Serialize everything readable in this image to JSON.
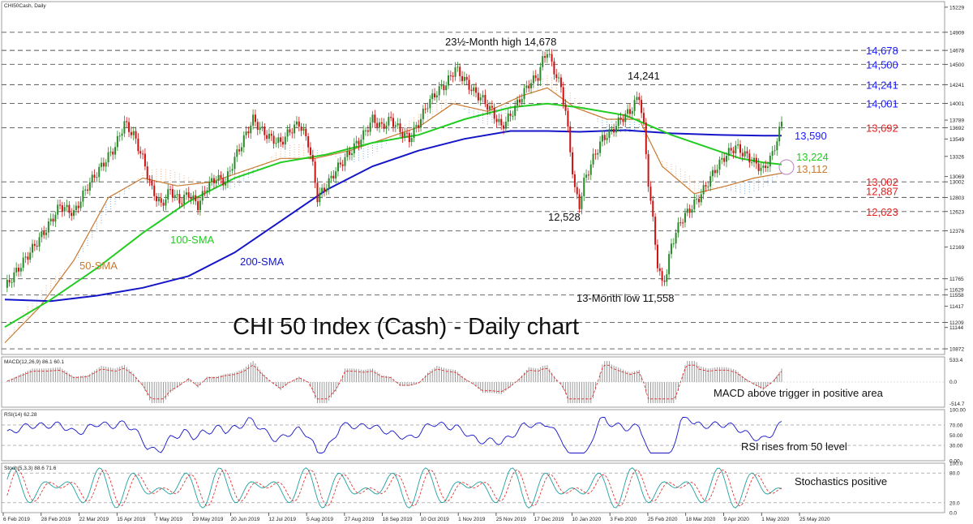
{
  "chart_data": {
    "type": "line",
    "symbol_title": "CHI50Cash, Daily",
    "title": "CHI 50 Index (Cash) - Daily chart",
    "colors": {
      "price": "#000000",
      "sma100": "#22cc22",
      "sma200": "#1515c8",
      "sma50": "#c87a30",
      "blue_labels": "#1a1aff",
      "red_labels": "#e02020",
      "green_labels": "#22cc22",
      "orange_labels": "#c87a30",
      "cloud": "#e8a070",
      "cloud_bear": "#5599dd",
      "macd_hist": "#9a9a9a",
      "macd_signal": "#e02020",
      "rsi": "#1515c8",
      "stoch_k": "#20a0a0",
      "stoch_d": "#e02020"
    },
    "price_axis_ticks": [
      "15229",
      "14909",
      "14678",
      "14500",
      "14241",
      "14001",
      "13789",
      "13692",
      "13549",
      "13326",
      "13069",
      "13002",
      "12803",
      "12623",
      "12376",
      "12169",
      "11765",
      "11629",
      "11558",
      "11417",
      "11209",
      "11144",
      "10872"
    ],
    "x_ticks": [
      "6 Feb 2019",
      "28 Feb 2019",
      "22 Mar 2019",
      "15 Apr 2019",
      "7 May 2019",
      "29 May 2019",
      "20 Jun 2019",
      "12 Jul 2019",
      "5 Aug 2019",
      "27 Aug 2019",
      "18 Sep 2019",
      "10 Oct 2019",
      "1 Nov 2019",
      "25 Nov 2019",
      "17 Dec 2019",
      "10 Jan 2020",
      "3 Feb 2020",
      "25 Feb 2020",
      "18 Mar 2020",
      "9 Apr 2020",
      "1 May 2020",
      "25 May 2020"
    ],
    "ylim": [
      10800,
      15300
    ],
    "levels": [
      {
        "value": "14,678",
        "price": 14678,
        "color": "blue"
      },
      {
        "value": "14,500",
        "price": 14500,
        "color": "blue"
      },
      {
        "value": "14,241",
        "price": 14241,
        "color": "blue"
      },
      {
        "value": "14,001",
        "price": 14001,
        "color": "blue"
      },
      {
        "value": "13,692",
        "price": 13692,
        "color": "red"
      },
      {
        "value": "13,002",
        "price": 13002,
        "color": "red"
      },
      {
        "value": "12,887",
        "price": 12887,
        "color": "red"
      },
      {
        "value": "12,623",
        "price": 12623,
        "color": "red"
      }
    ],
    "dashed_levels": [
      14909,
      14678,
      14500,
      14241,
      14001,
      13692,
      13002,
      12803,
      12623,
      12376,
      11765,
      11558,
      11209,
      10872
    ],
    "annotations": [
      {
        "text": "23½-Month high 14,678"
      },
      {
        "text": "14,241"
      },
      {
        "text": "12,528"
      },
      {
        "text": "13-Month low 11,558"
      },
      {
        "text": "13,590"
      },
      {
        "text": "13,224"
      },
      {
        "text": "13,112"
      },
      {
        "text": "100-SMA"
      },
      {
        "text": "200-SMA"
      },
      {
        "text": "50-SMA"
      }
    ],
    "price_series": [
      [
        0,
        11650
      ],
      [
        6,
        11900
      ],
      [
        12,
        12150
      ],
      [
        18,
        12400
      ],
      [
        24,
        12700
      ],
      [
        30,
        12600
      ],
      [
        36,
        12950
      ],
      [
        42,
        13200
      ],
      [
        48,
        13450
      ],
      [
        52,
        13750
      ],
      [
        56,
        13600
      ],
      [
        60,
        13300
      ],
      [
        64,
        12900
      ],
      [
        68,
        12700
      ],
      [
        72,
        12900
      ],
      [
        76,
        12750
      ],
      [
        80,
        12850
      ],
      [
        84,
        12700
      ],
      [
        88,
        12950
      ],
      [
        92,
        13050
      ],
      [
        96,
        13000
      ],
      [
        100,
        13300
      ],
      [
        104,
        13550
      ],
      [
        108,
        13800
      ],
      [
        112,
        13650
      ],
      [
        116,
        13550
      ],
      [
        120,
        13500
      ],
      [
        124,
        13650
      ],
      [
        128,
        13750
      ],
      [
        132,
        13500
      ],
      [
        134,
        13200
      ],
      [
        136,
        12800
      ],
      [
        140,
        12950
      ],
      [
        144,
        13150
      ],
      [
        148,
        13300
      ],
      [
        152,
        13450
      ],
      [
        156,
        13600
      ],
      [
        160,
        13800
      ],
      [
        164,
        13700
      ],
      [
        168,
        13800
      ],
      [
        172,
        13650
      ],
      [
        176,
        13550
      ],
      [
        180,
        13750
      ],
      [
        184,
        14000
      ],
      [
        188,
        14150
      ],
      [
        192,
        14250
      ],
      [
        196,
        14450
      ],
      [
        200,
        14300
      ],
      [
        204,
        14150
      ],
      [
        208,
        14050
      ],
      [
        212,
        13900
      ],
      [
        216,
        13700
      ],
      [
        220,
        13850
      ],
      [
        224,
        14050
      ],
      [
        228,
        14250
      ],
      [
        232,
        14350
      ],
      [
        234,
        14550
      ],
      [
        236,
        14678
      ],
      [
        238,
        14500
      ],
      [
        240,
        14350
      ],
      [
        242,
        14200
      ],
      [
        244,
        13900
      ],
      [
        246,
        13400
      ],
      [
        248,
        12900
      ],
      [
        250,
        12700
      ],
      [
        252,
        13000
      ],
      [
        256,
        13300
      ],
      [
        260,
        13550
      ],
      [
        264,
        13650
      ],
      [
        268,
        13800
      ],
      [
        272,
        13900
      ],
      [
        276,
        14100
      ],
      [
        278,
        13700
      ],
      [
        280,
        13000
      ],
      [
        282,
        12500
      ],
      [
        284,
        11950
      ],
      [
        286,
        11700
      ],
      [
        288,
        11850
      ],
      [
        290,
        12200
      ],
      [
        294,
        12500
      ],
      [
        298,
        12650
      ],
      [
        302,
        12800
      ],
      [
        306,
        13000
      ],
      [
        310,
        13200
      ],
      [
        314,
        13350
      ],
      [
        318,
        13450
      ],
      [
        322,
        13350
      ],
      [
        326,
        13250
      ],
      [
        330,
        13150
      ],
      [
        334,
        13350
      ],
      [
        338,
        13750
      ]
    ],
    "sma100": [
      [
        0,
        11150
      ],
      [
        20,
        11500
      ],
      [
        40,
        11900
      ],
      [
        60,
        12350
      ],
      [
        80,
        12750
      ],
      [
        100,
        13050
      ],
      [
        120,
        13250
      ],
      [
        140,
        13350
      ],
      [
        160,
        13500
      ],
      [
        180,
        13600
      ],
      [
        200,
        13800
      ],
      [
        220,
        13950
      ],
      [
        236,
        14000
      ],
      [
        250,
        13950
      ],
      [
        270,
        13850
      ],
      [
        290,
        13600
      ],
      [
        310,
        13400
      ],
      [
        320,
        13300
      ],
      [
        330,
        13250
      ],
      [
        338,
        13224
      ]
    ],
    "sma200": [
      [
        0,
        11500
      ],
      [
        20,
        11480
      ],
      [
        40,
        11550
      ],
      [
        60,
        11650
      ],
      [
        80,
        11800
      ],
      [
        100,
        12100
      ],
      [
        120,
        12500
      ],
      [
        140,
        12900
      ],
      [
        160,
        13200
      ],
      [
        180,
        13400
      ],
      [
        200,
        13550
      ],
      [
        220,
        13650
      ],
      [
        236,
        13650
      ],
      [
        250,
        13640
      ],
      [
        270,
        13660
      ],
      [
        290,
        13620
      ],
      [
        310,
        13600
      ],
      [
        330,
        13590
      ],
      [
        338,
        13590
      ]
    ],
    "sma50": [
      [
        0,
        10950
      ],
      [
        15,
        11400
      ],
      [
        30,
        12000
      ],
      [
        45,
        12800
      ],
      [
        60,
        13050
      ],
      [
        75,
        12950
      ],
      [
        90,
        13000
      ],
      [
        105,
        13150
      ],
      [
        120,
        13300
      ],
      [
        135,
        13300
      ],
      [
        150,
        13400
      ],
      [
        165,
        13550
      ],
      [
        180,
        13700
      ],
      [
        195,
        14000
      ],
      [
        210,
        13900
      ],
      [
        225,
        14100
      ],
      [
        236,
        14200
      ],
      [
        248,
        13950
      ],
      [
        262,
        13800
      ],
      [
        276,
        13800
      ],
      [
        286,
        13200
      ],
      [
        300,
        12850
      ],
      [
        314,
        12950
      ],
      [
        326,
        13050
      ],
      [
        338,
        13112
      ]
    ],
    "macd": {
      "label": "MACD(12,26,9) 86.1 60.1",
      "ticks": [
        "533.4",
        "0.0",
        "-514.7"
      ],
      "note": "MACD above trigger in positive area"
    },
    "rsi": {
      "label": "RSI(14) 62.28",
      "ticks": [
        "100.00",
        "70.00",
        "50.00",
        "30.00",
        "0.00"
      ],
      "note": "RSI rises from 50 level"
    },
    "stoch": {
      "label": "Stoch(5,3,3) 88.6 71.6",
      "ticks": [
        "100.0",
        "80.0",
        "20.0",
        "0.0"
      ],
      "note": "Stochastics positive"
    }
  }
}
